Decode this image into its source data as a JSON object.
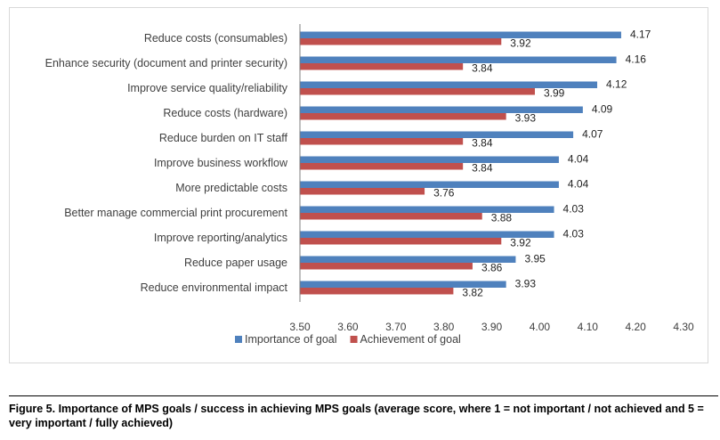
{
  "chart_data": {
    "type": "bar",
    "orientation": "horizontal",
    "categories": [
      "Reduce costs (consumables)",
      "Enhance security (document and printer security)",
      "Improve service quality/reliability",
      "Reduce costs (hardware)",
      "Reduce burden on IT staff",
      "Improve business workflow",
      "More predictable costs",
      "Better manage commercial print procurement",
      "Improve reporting/analytics",
      "Reduce paper usage",
      "Reduce environmental impact"
    ],
    "series": [
      {
        "name": "Importance of goal",
        "color": "#4f81bd",
        "values": [
          4.17,
          4.16,
          4.12,
          4.09,
          4.07,
          4.04,
          4.04,
          4.03,
          4.03,
          3.95,
          3.93
        ],
        "labels": [
          "4.17",
          "4.16",
          "4.12",
          "4.09",
          "4.07",
          "4.04",
          "4.04",
          "4.03",
          "4.03",
          "3.95",
          "3.93"
        ]
      },
      {
        "name": "Achievement of goal",
        "color": "#c0504d",
        "values": [
          3.92,
          3.84,
          3.99,
          3.93,
          3.84,
          3.84,
          3.76,
          3.88,
          3.92,
          3.86,
          3.82
        ],
        "labels": [
          "3.92",
          "3.84",
          "3.99",
          "3.93",
          "3.84",
          "3.84",
          "3.76",
          "3.88",
          "3.92",
          "3.86",
          "3.82"
        ]
      }
    ],
    "xlim": [
      3.5,
      4.3
    ],
    "xticks": [
      3.5,
      3.6,
      3.7,
      3.8,
      3.9,
      4.0,
      4.1,
      4.2,
      4.3
    ],
    "xtick_labels": [
      "3.50",
      "3.60",
      "3.70",
      "3.80",
      "3.90",
      "4.00",
      "4.10",
      "4.20",
      "4.30"
    ],
    "grid": false,
    "legend_position": "bottom"
  },
  "caption": "Figure 5. Importance of MPS goals / success in achieving MPS goals (average score, where 1 = not important / not achieved and 5 = very important / fully achieved)"
}
